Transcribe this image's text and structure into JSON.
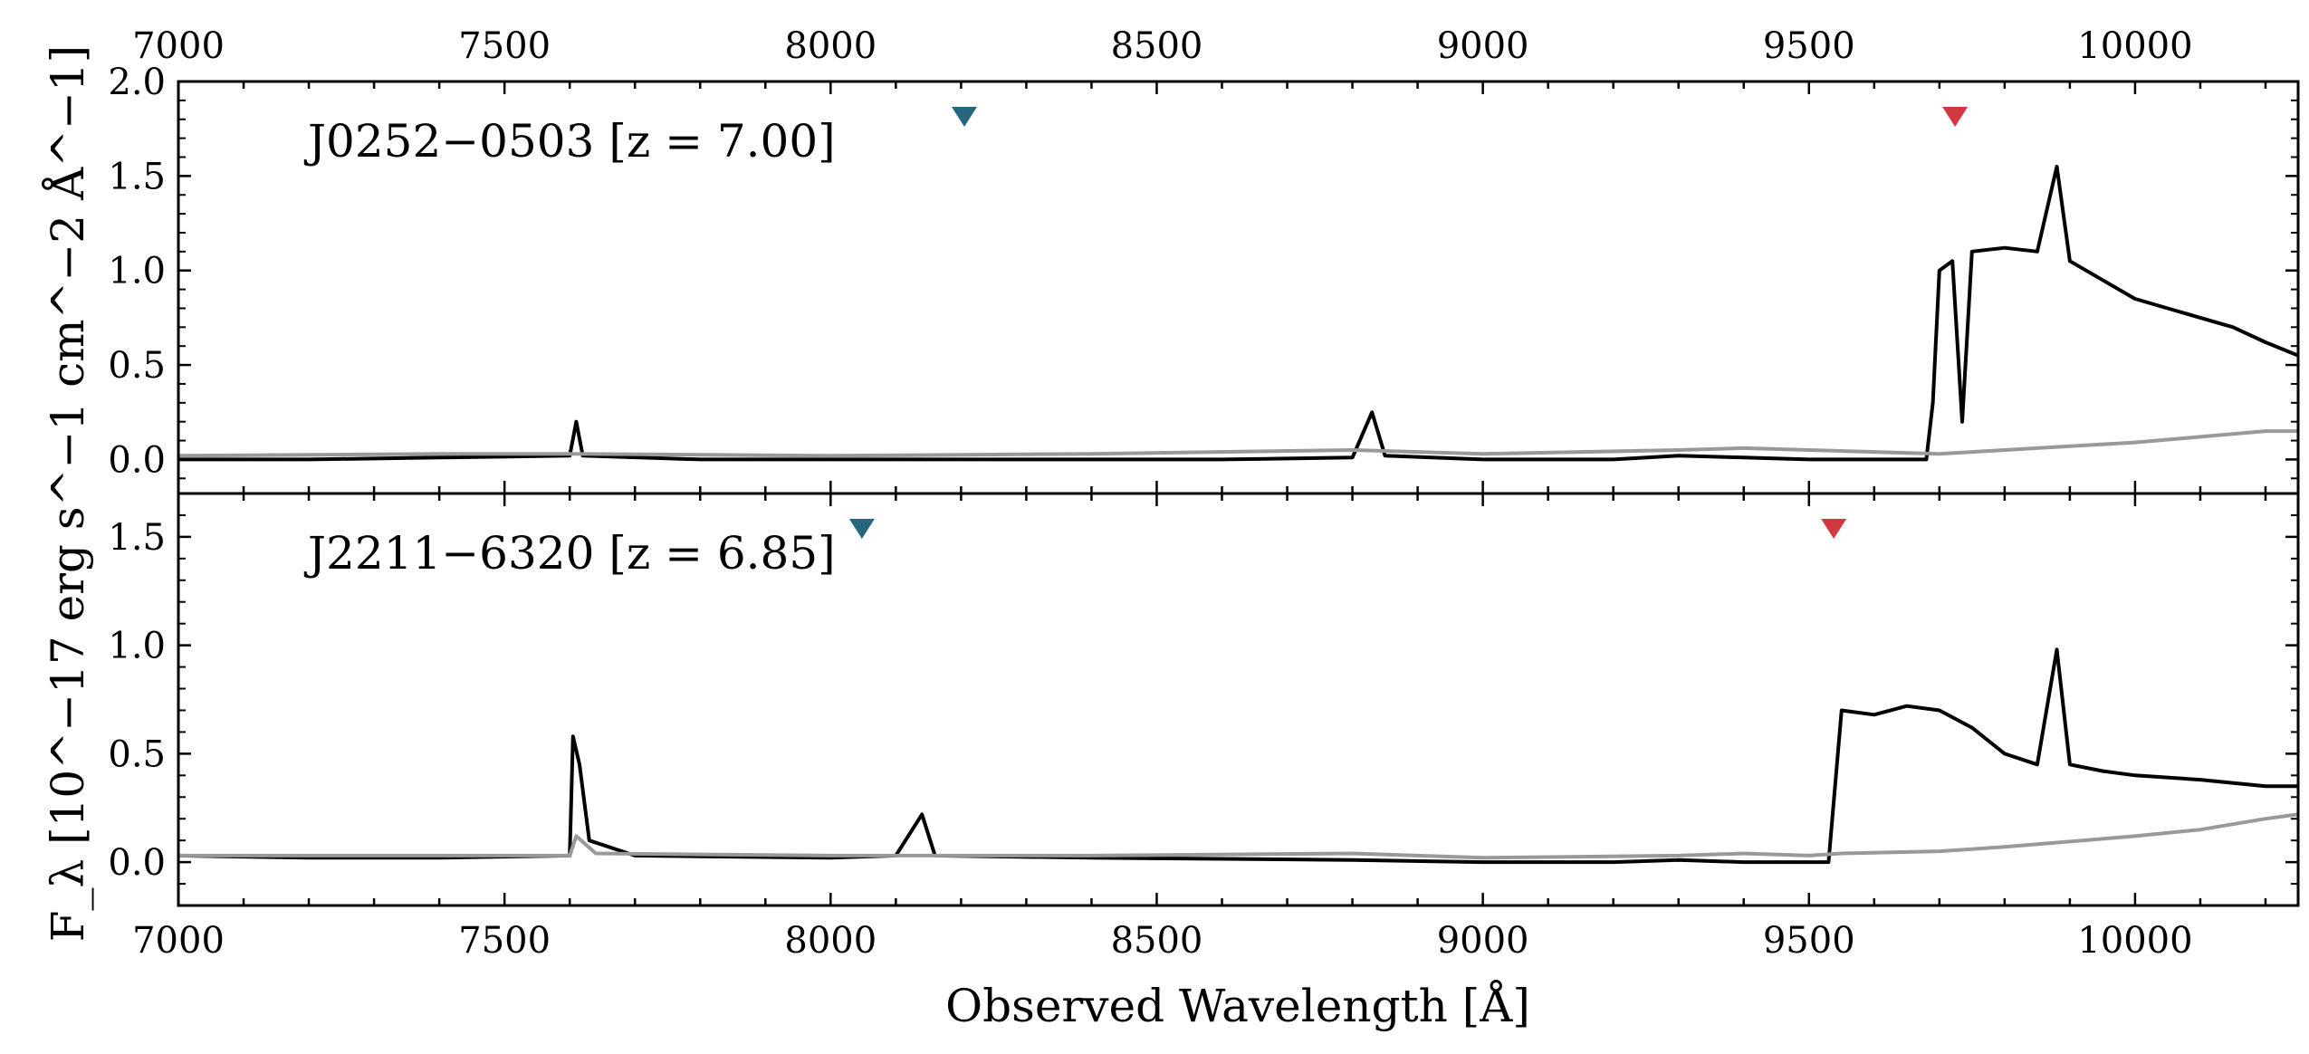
{
  "chart_data": {
    "type": "line",
    "xlabel": "Observed Wavelength [Å]",
    "ylabel": "F_λ [10^−17 erg s^−1 cm^−2 Å^−1]",
    "xlim": [
      7000,
      10250
    ],
    "x_ticks": [
      "7000",
      "7500",
      "8000",
      "8500",
      "9000",
      "9500",
      "10000"
    ],
    "panels": [
      {
        "label": "J0252−0503 [z = 7.00]",
        "ylim": [
          -0.18,
          2.0
        ],
        "y_ticks": [
          "0.0",
          "0.5",
          "1.0",
          "1.5",
          "2.0"
        ],
        "colors": {
          "flux": "#000000",
          "error": "#999999"
        },
        "markers": [
          {
            "x": 8205,
            "color": "#26667f"
          },
          {
            "x": 9724,
            "color": "#d0393f"
          }
        ],
        "series": [
          {
            "role": "flux",
            "x": [
              7000,
              7200,
              7400,
              7600,
              7610,
              7620,
              7800,
              8000,
              8200,
              8400,
              8600,
              8800,
              8830,
              8850,
              9000,
              9200,
              9300,
              9400,
              9500,
              9600,
              9680,
              9690,
              9700,
              9720,
              9735,
              9750,
              9800,
              9850,
              9880,
              9900,
              9950,
              10000,
              10050,
              10100,
              10150,
              10200,
              10250
            ],
            "y": [
              0.0,
              0.0,
              0.01,
              0.02,
              0.2,
              0.02,
              0.0,
              0.0,
              0.0,
              0.0,
              0.0,
              0.01,
              0.25,
              0.02,
              0.0,
              0.0,
              0.02,
              0.01,
              0.0,
              0.0,
              0.0,
              0.3,
              1.0,
              1.05,
              0.2,
              1.1,
              1.12,
              1.1,
              1.55,
              1.05,
              0.95,
              0.85,
              0.8,
              0.75,
              0.7,
              0.62,
              0.55
            ]
          },
          {
            "role": "error",
            "x": [
              7000,
              7400,
              7600,
              8000,
              8400,
              8800,
              9000,
              9300,
              9400,
              9500,
              9600,
              9700,
              9750,
              9800,
              9900,
              10000,
              10100,
              10200,
              10250
            ],
            "y": [
              0.02,
              0.03,
              0.03,
              0.02,
              0.03,
              0.05,
              0.03,
              0.05,
              0.06,
              0.05,
              0.04,
              0.03,
              0.04,
              0.05,
              0.07,
              0.09,
              0.12,
              0.15,
              0.15
            ]
          }
        ]
      },
      {
        "label": "J2211−6320 [z = 6.85]",
        "ylim": [
          -0.2,
          1.7
        ],
        "y_ticks": [
          "0.0",
          "0.5",
          "1.0",
          "1.5"
        ],
        "colors": {
          "flux": "#000000",
          "error": "#999999"
        },
        "markers": [
          {
            "x": 8048,
            "color": "#26667f"
          },
          {
            "x": 9538,
            "color": "#d0393f"
          }
        ],
        "series": [
          {
            "role": "flux",
            "x": [
              7000,
              7200,
              7400,
              7600,
              7605,
              7615,
              7630,
              7700,
              8000,
              8100,
              8140,
              8160,
              8400,
              8800,
              9000,
              9200,
              9300,
              9400,
              9500,
              9530,
              9550,
              9600,
              9650,
              9700,
              9750,
              9800,
              9850,
              9880,
              9900,
              9950,
              10000,
              10100,
              10200,
              10250
            ],
            "y": [
              0.03,
              0.02,
              0.02,
              0.03,
              0.58,
              0.45,
              0.1,
              0.03,
              0.02,
              0.03,
              0.22,
              0.03,
              0.02,
              0.01,
              0.0,
              0.0,
              0.01,
              0.0,
              0.0,
              0.0,
              0.7,
              0.68,
              0.72,
              0.7,
              0.62,
              0.5,
              0.45,
              0.98,
              0.45,
              0.42,
              0.4,
              0.38,
              0.35,
              0.35
            ]
          },
          {
            "role": "error",
            "x": [
              7000,
              7400,
              7600,
              7610,
              7640,
              8000,
              8400,
              8800,
              9000,
              9300,
              9400,
              9500,
              9550,
              9700,
              9800,
              10000,
              10100,
              10200,
              10250
            ],
            "y": [
              0.03,
              0.03,
              0.03,
              0.12,
              0.04,
              0.03,
              0.03,
              0.04,
              0.02,
              0.03,
              0.04,
              0.03,
              0.04,
              0.05,
              0.07,
              0.12,
              0.15,
              0.2,
              0.22
            ]
          }
        ]
      }
    ]
  }
}
